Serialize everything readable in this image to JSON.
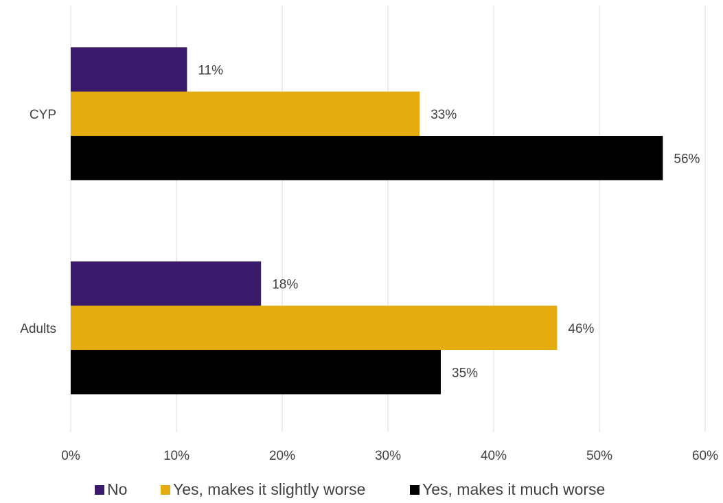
{
  "chart_data": {
    "type": "bar",
    "orientation": "horizontal",
    "categories": [
      "CYP",
      "Adults"
    ],
    "series": [
      {
        "name": "No",
        "values": [
          11,
          18
        ],
        "labels": [
          "11%",
          "18%"
        ],
        "color": "#3B1A6E"
      },
      {
        "name": "Yes, makes it slightly worse",
        "values": [
          33,
          46
        ],
        "labels": [
          "33%",
          "46%"
        ],
        "color": "#E5AC12"
      },
      {
        "name": "Yes, makes it much worse",
        "values": [
          56,
          35
        ],
        "labels": [
          "56%",
          "35%"
        ],
        "color": "#000000"
      }
    ],
    "xlim": [
      0,
      60
    ],
    "xticks": [
      0,
      10,
      20,
      30,
      40,
      50,
      60
    ],
    "xtick_labels": [
      "0%",
      "10%",
      "20%",
      "30%",
      "40%",
      "50%",
      "60%"
    ],
    "grid": true,
    "legend_position": "bottom",
    "gridline_color": "#D9D9D9"
  }
}
